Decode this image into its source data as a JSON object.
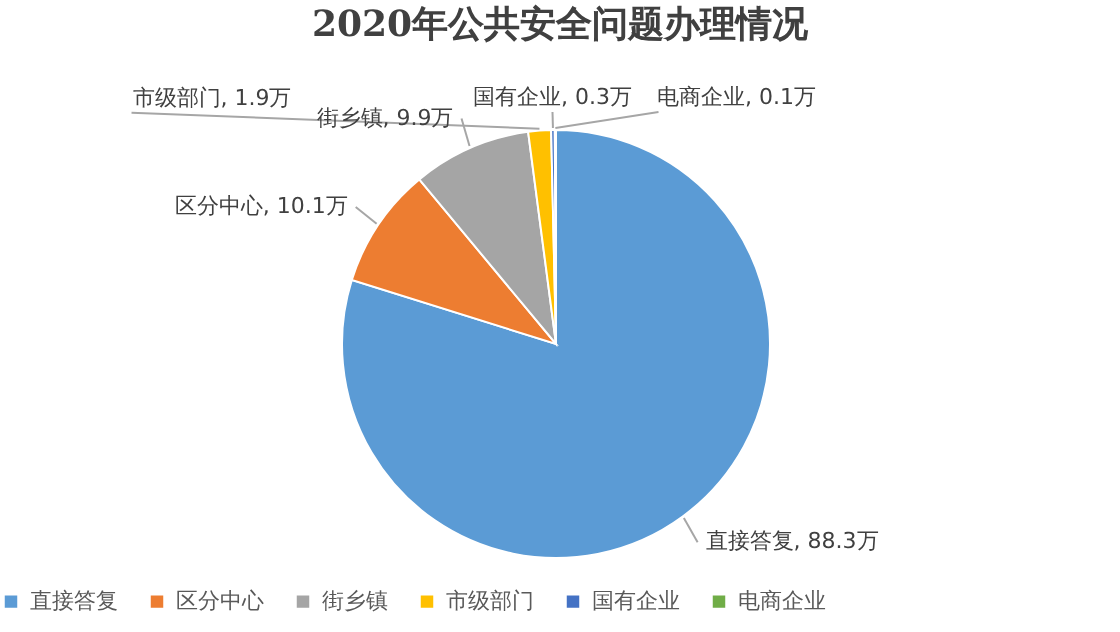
{
  "chart_data": {
    "type": "pie",
    "title": "2020年公共安全问题办理情况",
    "categories": [
      "直接答复",
      "区分中心",
      "街乡镇",
      "市级部门",
      "国有企业",
      "电商企业"
    ],
    "values": [
      88.3,
      10.1,
      9.9,
      1.9,
      0.3,
      0.1
    ],
    "value_labels": [
      "直接答复, 88.3万",
      "区分中心, 10.1万",
      "街乡镇, 9.9万",
      "市级部门, 1.9万",
      "国有企业, 0.3万",
      "电商企业, 0.1万"
    ],
    "colors": [
      "#5b9bd5",
      "#ed7d31",
      "#a5a5a5",
      "#ffc000",
      "#4472c4",
      "#70ad47"
    ],
    "legend": "bottom"
  }
}
